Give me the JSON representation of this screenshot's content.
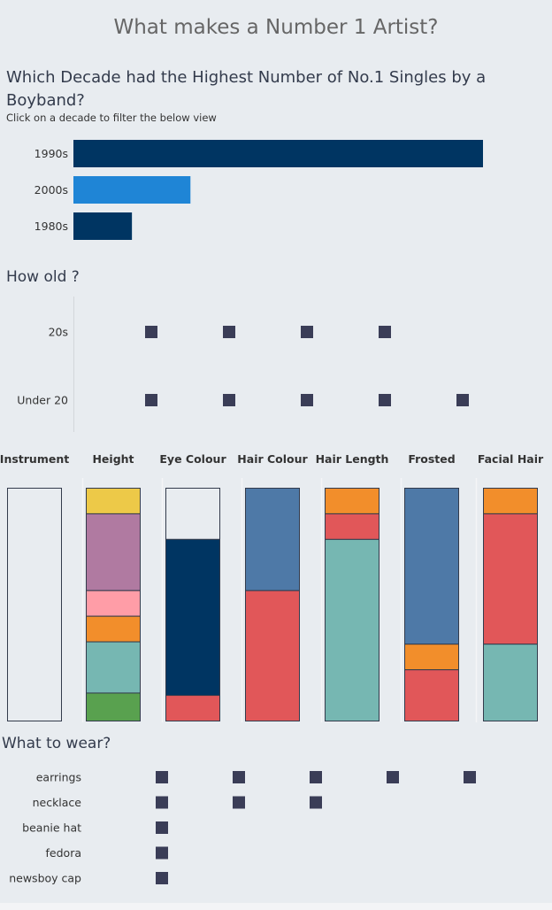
{
  "title": "What makes a Number 1 Artist?",
  "chart_data": [
    {
      "type": "bar",
      "title": "Which Decade had the Highest Number of No.1 Singles by a Boyband?",
      "subtitle": "Click on a decade to filter the below view",
      "orientation": "horizontal",
      "categories": [
        "1990s",
        "2000s",
        "1980s"
      ],
      "values": [
        21,
        6,
        3
      ],
      "colors": [
        "#003562",
        "#1f85d6",
        "#003562"
      ],
      "selected": "2000s"
    },
    {
      "type": "scatter",
      "title": "How old ?",
      "categories": [
        "20s",
        "Under 20"
      ],
      "counts": [
        4,
        5
      ],
      "mark": "square",
      "color": "#3a3d57"
    },
    {
      "type": "bar",
      "stacked": true,
      "percent": true,
      "categories": [
        "Instrument",
        "Height",
        "Eye Colour",
        "Hair Colour",
        "Hair Length",
        "Frosted",
        "Facial Hair"
      ],
      "series": [
        {
          "column": "Instrument",
          "segments": [
            {
              "value": 100,
              "color": "#e8ecf0"
            }
          ]
        },
        {
          "column": "Height",
          "segments": [
            {
              "value": 11,
              "color": "#edc948"
            },
            {
              "value": 33,
              "color": "#b07aa1"
            },
            {
              "value": 11,
              "color": "#ff9da7"
            },
            {
              "value": 11,
              "color": "#f28e2b"
            },
            {
              "value": 22,
              "color": "#76b7b2"
            },
            {
              "value": 12,
              "color": "#59a14f"
            }
          ]
        },
        {
          "column": "Eye Colour",
          "segments": [
            {
              "value": 22,
              "color": "#e8ecf0"
            },
            {
              "value": 67,
              "color": "#003562"
            },
            {
              "value": 11,
              "color": "#e15759"
            }
          ]
        },
        {
          "column": "Hair Colour",
          "segments": [
            {
              "value": 44,
              "color": "#4e79a7"
            },
            {
              "value": 56,
              "color": "#e15759"
            }
          ]
        },
        {
          "column": "Hair Length",
          "segments": [
            {
              "value": 11,
              "color": "#f28e2b"
            },
            {
              "value": 11,
              "color": "#e15759"
            },
            {
              "value": 78,
              "color": "#76b7b2"
            }
          ]
        },
        {
          "column": "Frosted",
          "segments": [
            {
              "value": 67,
              "color": "#4e79a7"
            },
            {
              "value": 11,
              "color": "#f28e2b"
            },
            {
              "value": 22,
              "color": "#e15759"
            }
          ]
        },
        {
          "column": "Facial Hair",
          "segments": [
            {
              "value": 11,
              "color": "#f28e2b"
            },
            {
              "value": 56,
              "color": "#e15759"
            },
            {
              "value": 33,
              "color": "#76b7b2"
            }
          ]
        }
      ]
    },
    {
      "type": "scatter",
      "title": "What to wear?",
      "categories": [
        "earrings",
        "necklace",
        "beanie hat",
        "fedora",
        "newsboy cap"
      ],
      "counts": [
        5,
        3,
        1,
        1,
        1
      ],
      "mark": "square",
      "color": "#3a3d57"
    }
  ]
}
